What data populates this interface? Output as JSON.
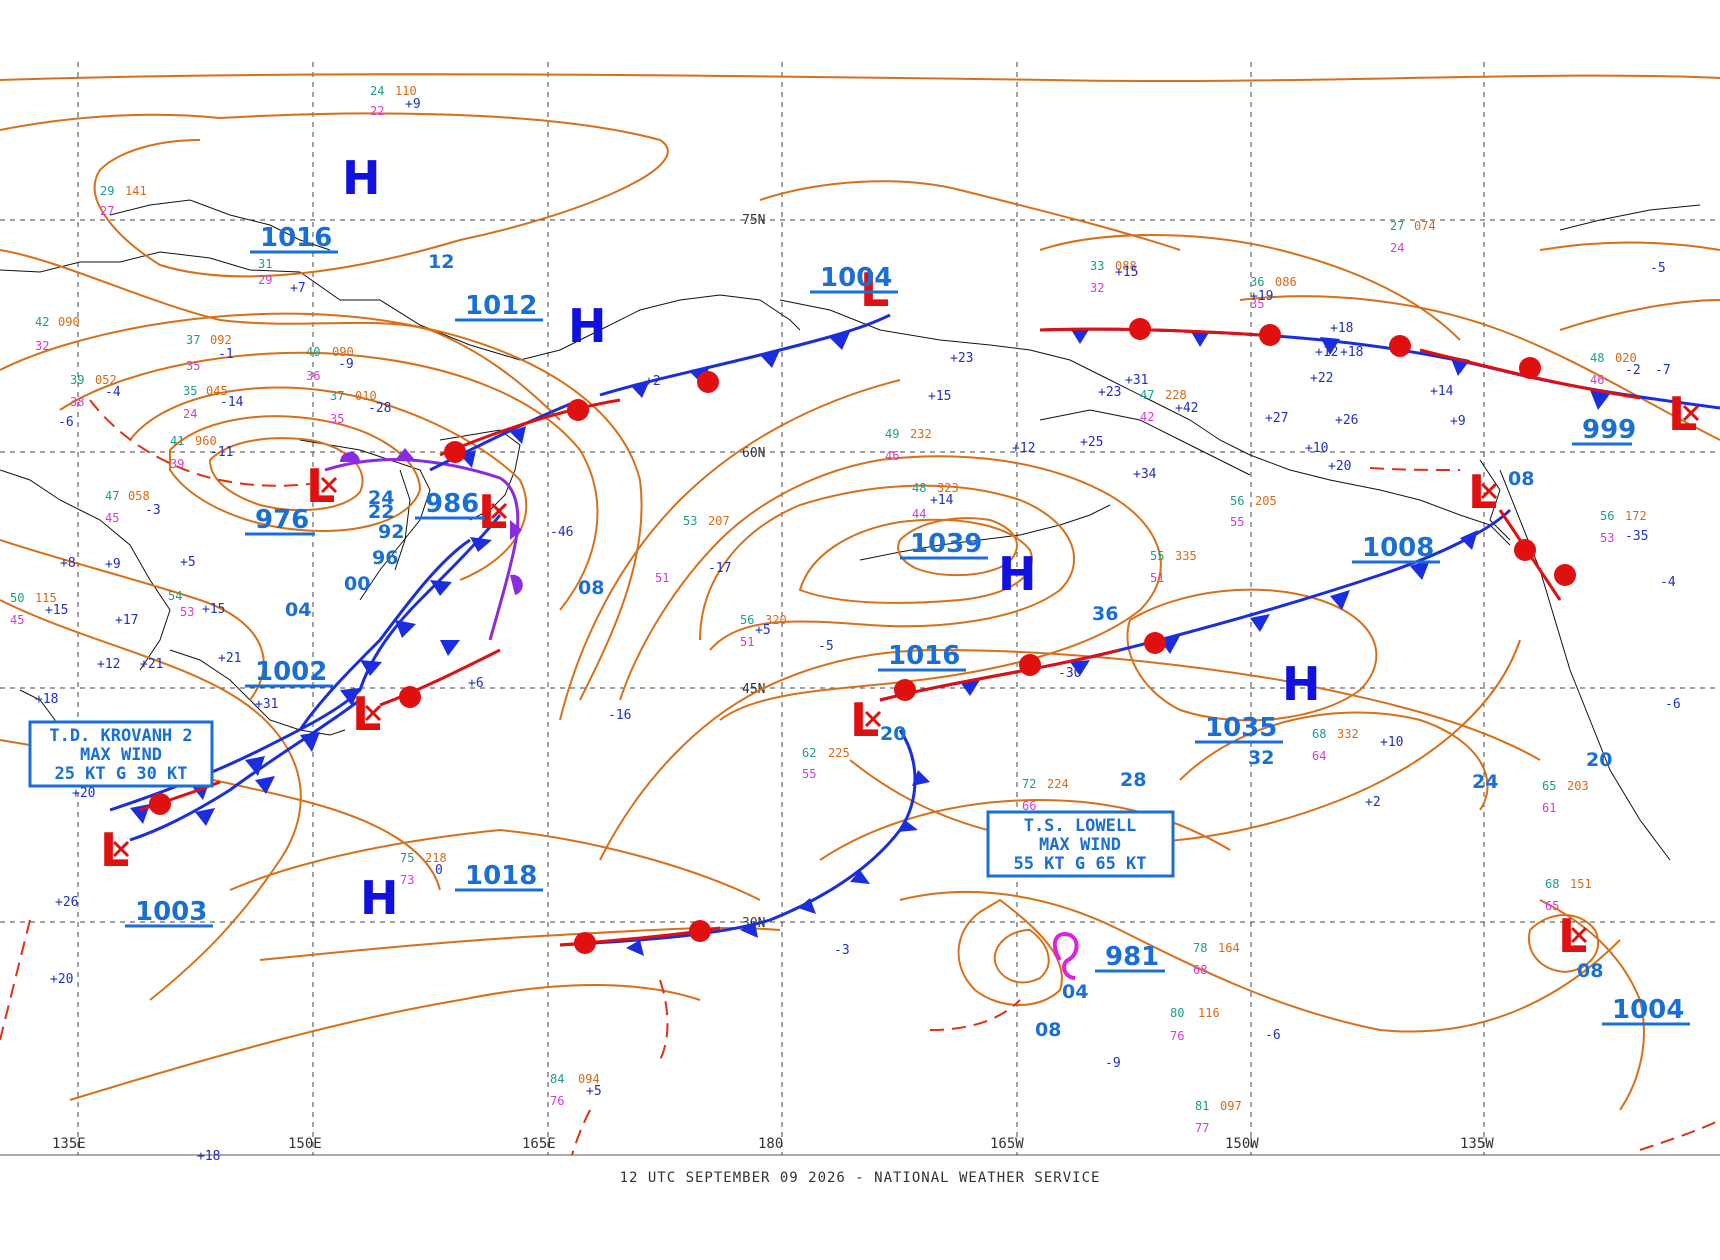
{
  "footer": "12 UTC SEPTEMBER 09 2026 - NATIONAL WEATHER SERVICE",
  "longitude_labels": [
    "135E",
    "150E",
    "165E",
    "180",
    "165W",
    "150W",
    "135W"
  ],
  "latitude_labels": [
    "75N",
    "60N",
    "45N",
    "30N"
  ],
  "colors": {
    "isobar": "#d8701a",
    "warm_front": "#e01010",
    "cold_front": "#1a2ee0",
    "occluded_front": "#8a2be2",
    "pressure_label": "#1a6fd6",
    "high": "#1010e0",
    "low": "#e01010",
    "grid": "#444444"
  },
  "pressure_centers": [
    {
      "type": "H",
      "value": "1016"
    },
    {
      "type": "H",
      "value": "1012"
    },
    {
      "type": "L",
      "value": "1004"
    },
    {
      "type": "L",
      "value": "976"
    },
    {
      "type": "L",
      "value": "986"
    },
    {
      "type": "H",
      "value": "1039"
    },
    {
      "type": "L",
      "value": "1008"
    },
    {
      "type": "L",
      "value": "999"
    },
    {
      "type": "L",
      "value": "1002"
    },
    {
      "type": "L",
      "value": "1003"
    },
    {
      "type": "H",
      "value": "1018"
    },
    {
      "type": "L",
      "value": "1016"
    },
    {
      "type": "H",
      "value": "1035"
    },
    {
      "type": "L",
      "value": "981"
    },
    {
      "type": "L",
      "value": "1004"
    }
  ],
  "isobar_labels": [
    "12",
    "24",
    "22",
    "92",
    "96",
    "00",
    "04",
    "08",
    "36",
    "28",
    "32",
    "24",
    "20",
    "20",
    "08",
    "04",
    "08",
    "08"
  ],
  "storm_boxes": [
    {
      "lines": [
        "T.D. KROVANH 2",
        "MAX WIND",
        "25 KT G 30 KT"
      ]
    },
    {
      "lines": [
        "T.S. LOWELL",
        "MAX WIND",
        "55 KT G 65 KT"
      ]
    }
  ],
  "station_obs": [
    {
      "t": "24",
      "p": "110",
      "d": "22"
    },
    {
      "t": "29",
      "p": "141",
      "d": "27"
    },
    {
      "t": "31",
      "p": "",
      "d": "29"
    },
    {
      "t": "42",
      "p": "090",
      "d": "32"
    },
    {
      "t": "37",
      "p": "092",
      "d": "35"
    },
    {
      "t": "40",
      "p": "090",
      "d": "36"
    },
    {
      "t": "39",
      "p": "052",
      "d": "38"
    },
    {
      "t": "35",
      "p": "045",
      "d": "24"
    },
    {
      "t": "37",
      "p": "010",
      "d": "35"
    },
    {
      "t": "41",
      "p": "960",
      "d": "39"
    },
    {
      "t": "47",
      "p": "058",
      "d": "45"
    },
    {
      "t": "50",
      "p": "115",
      "d": "45"
    },
    {
      "t": "54",
      "p": "",
      "d": "53"
    },
    {
      "t": "53",
      "p": "207",
      "d": "51"
    },
    {
      "t": "56",
      "p": "320",
      "d": "51"
    },
    {
      "t": "62",
      "p": "225",
      "d": "55"
    },
    {
      "t": "72",
      "p": "224",
      "d": "66"
    },
    {
      "t": "75",
      "p": "218",
      "d": "73"
    },
    {
      "t": "78",
      "p": "164",
      "d": "68"
    },
    {
      "t": "80",
      "p": "116",
      "d": "76"
    },
    {
      "t": "84",
      "p": "094",
      "d": "76"
    },
    {
      "t": "81",
      "p": "097",
      "d": "77"
    },
    {
      "t": "68",
      "p": "151",
      "d": "65"
    },
    {
      "t": "65",
      "p": "203",
      "d": "61"
    },
    {
      "t": "48",
      "p": "323",
      "d": "44"
    },
    {
      "t": "55",
      "p": "335",
      "d": "51"
    },
    {
      "t": "56",
      "p": "205",
      "d": "55"
    },
    {
      "t": "49",
      "p": "232",
      "d": "46"
    },
    {
      "t": "47",
      "p": "228",
      "d": "42"
    },
    {
      "t": "36",
      "p": "086",
      "d": "35"
    },
    {
      "t": "33",
      "p": "088",
      "d": "32"
    },
    {
      "t": "27",
      "p": "074",
      "d": "24"
    },
    {
      "t": "48",
      "p": "020",
      "d": "46"
    },
    {
      "t": "56",
      "p": "172",
      "d": "53"
    },
    {
      "t": "68",
      "p": "332",
      "d": "64"
    }
  ],
  "pressure_tendencies": [
    "+9",
    "+7",
    "-1",
    "-9",
    "-4",
    "-6",
    "-14",
    "-28",
    "-11",
    "-3",
    "+8",
    "+9",
    "+5",
    "+15",
    "+17",
    "+15",
    "+21",
    "+12",
    "+21",
    "+18",
    "+31",
    "+2",
    "+5",
    "+23",
    "+15",
    "+23",
    "+42",
    "+31",
    "+25",
    "+12",
    "+34",
    "+15",
    "+19",
    "+18",
    "+18",
    "+12",
    "+22",
    "+27",
    "+26",
    "+10",
    "+20",
    "+14",
    "+9",
    "-2",
    "-5",
    "-7",
    "-35",
    "-4",
    "-6",
    "+10",
    "+2",
    "-16",
    "+6",
    "-5",
    "-30",
    "-3",
    "-6",
    "-9",
    "+20",
    "+26",
    "+5",
    "+20",
    "+18",
    "-46",
    "-17",
    "+14",
    "0"
  ]
}
